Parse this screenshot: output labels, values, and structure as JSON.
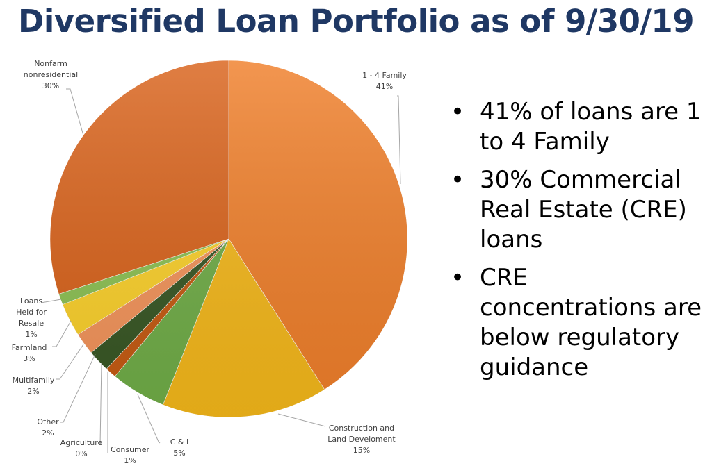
{
  "title": "Diversified Loan Portfolio as of 9/30/19",
  "bullets": [
    "41% of loans are 1 to 4 Family",
    "30% Commercial Real Estate (CRE) loans",
    "CRE concentrations are below regulatory guidance"
  ],
  "chart_data": {
    "type": "pie",
    "title": "Diversified Loan Portfolio as of 9/30/19",
    "slices": [
      {
        "label": "1 - 4 Family",
        "value": 41,
        "value_label": "41%",
        "color": "#f07f2a"
      },
      {
        "label": "Construction and Land Develoment",
        "value": 15,
        "value_label": "15%",
        "color": "#f5b81a"
      },
      {
        "label": "C & I",
        "value": 5,
        "value_label": "5%",
        "color": "#70ad47"
      },
      {
        "label": "Consumer",
        "value": 1,
        "value_label": "1%",
        "color": "#c55a11"
      },
      {
        "label": "Agriculture",
        "value": 0,
        "value_label": "0%",
        "color": "#8faadc"
      },
      {
        "label": "Other",
        "value": 2,
        "value_label": "2%",
        "color": "#375623"
      },
      {
        "label": "Multifamily",
        "value": 2,
        "value_label": "2%",
        "color": "#f4945a"
      },
      {
        "label": "Farmland",
        "value": 3,
        "value_label": "3%",
        "color": "#fcd12a"
      },
      {
        "label": "Loans Held for Resale",
        "value": 1,
        "value_label": "1%",
        "color": "#8cc152"
      },
      {
        "label": "Nonfarm nonresidential",
        "value": 30,
        "value_label": "30%",
        "color": "#d9621a"
      }
    ],
    "legend": "none"
  }
}
